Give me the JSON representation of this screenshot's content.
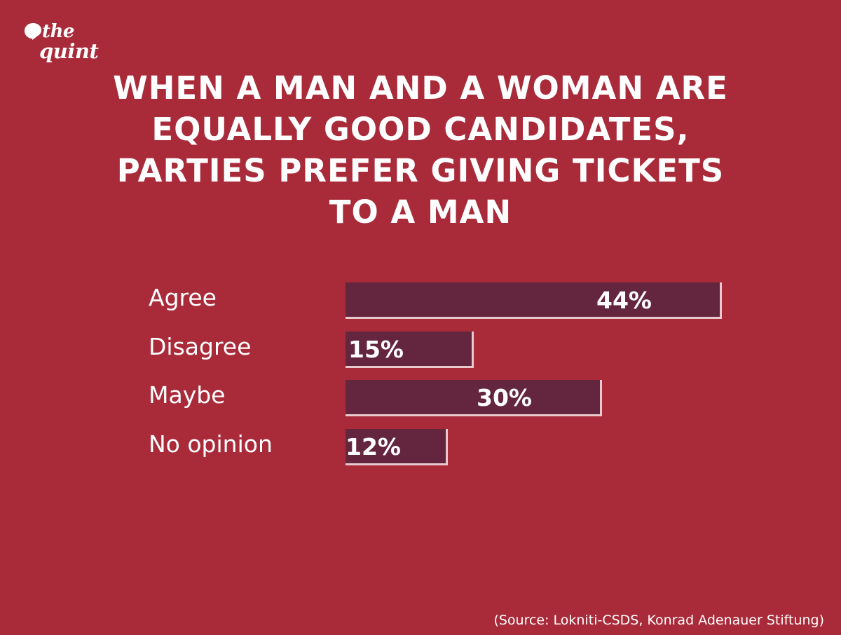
{
  "brand": {
    "logo_line1": "the",
    "logo_line2": "quint",
    "icon": "quint-speech-bubble-logo-icon"
  },
  "title_lines": [
    "WHEN A MAN AND A WOMAN ARE",
    "EQUALLY GOOD CANDIDATES,",
    "PARTIES PREFER GIVING TICKETS",
    "TO A MAN"
  ],
  "colors": {
    "background": "#a92b3a",
    "bar": "#64263f",
    "bar_edge": "#e9c9cd",
    "text": "#ffffff"
  },
  "chart_data": {
    "type": "bar",
    "orientation": "horizontal",
    "title": "WHEN A MAN AND A WOMAN ARE EQUALLY GOOD CANDIDATES, PARTIES PREFER GIVING TICKETS TO A MAN",
    "categories": [
      "Agree",
      "Disagree",
      "Maybe",
      "No opinion"
    ],
    "values": [
      44,
      15,
      30,
      12
    ],
    "value_labels": [
      "44%",
      "15%",
      "30%",
      "12%"
    ],
    "unit": "%",
    "xlim": [
      0,
      44
    ],
    "grid": false,
    "legend": "none"
  },
  "source": "(Source: Lokniti-CSDS, Konrad Adenauer Stiftung)"
}
